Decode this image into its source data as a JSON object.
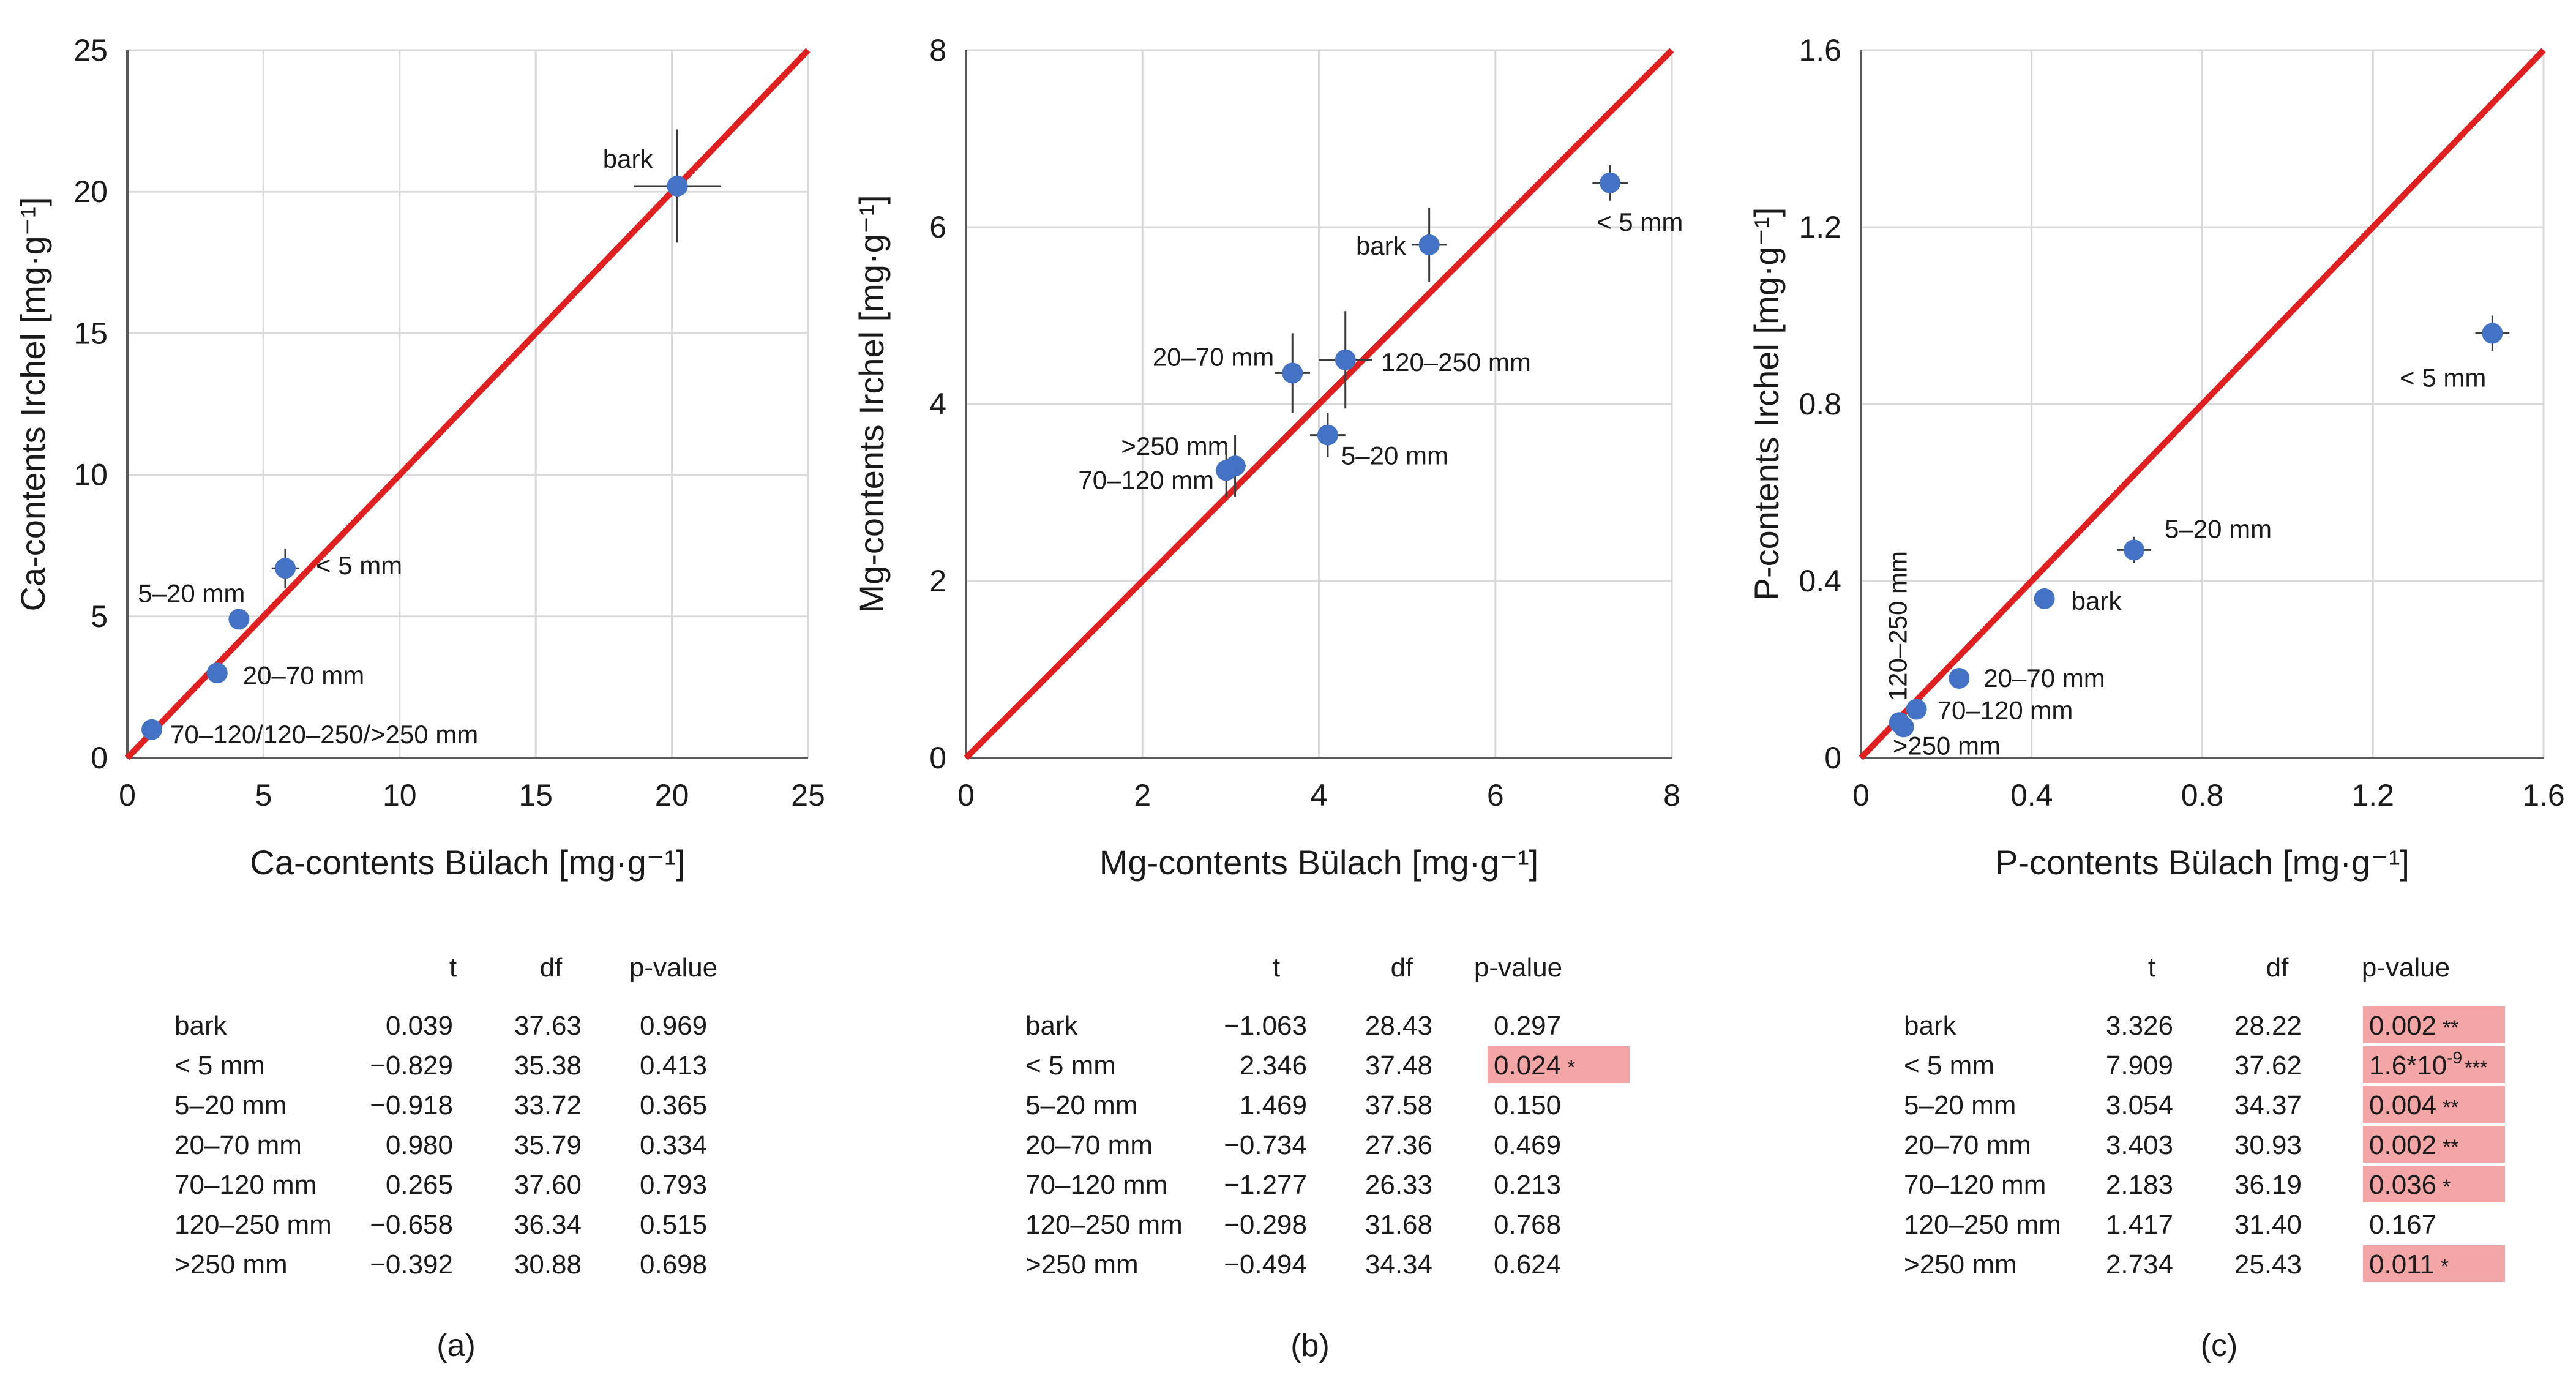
{
  "chart_data": [
    {
      "type": "scatter",
      "panel": "(a)",
      "xlabel": "Ca-contents Bülach [mg·g⁻¹]",
      "ylabel": "Ca-contents Irchel [mg·g⁻¹]",
      "xlim": [
        0,
        25
      ],
      "ylim": [
        0,
        25
      ],
      "xticks": [
        0,
        5,
        10,
        15,
        20,
        25
      ],
      "yticks": [
        0,
        5,
        10,
        15,
        20,
        25
      ],
      "tick_labels_x": [
        "0",
        "5",
        "10",
        "15",
        "20",
        "25"
      ],
      "tick_labels_y": [
        "0",
        "5",
        "10",
        "15",
        "20",
        "25"
      ],
      "reference_line": "1:1",
      "points": [
        {
          "label": "bark",
          "x": 20.2,
          "y": 20.2,
          "xerr": 1.6,
          "yerr": 2.0
        },
        {
          "label": "< 5 mm",
          "x": 5.8,
          "y": 6.7,
          "xerr": 0.5,
          "yerr": 0.7
        },
        {
          "label": "5–20 mm",
          "x": 4.1,
          "y": 4.9,
          "xerr": 0.2,
          "yerr": 0.3
        },
        {
          "label": "20–70 mm",
          "x": 3.3,
          "y": 3.0,
          "xerr": 0.15,
          "yerr": 0.2
        },
        {
          "label": "70–120/120–250/>250 mm",
          "x": 0.9,
          "y": 1.0,
          "xerr": 0.2,
          "yerr": 0.2
        }
      ],
      "table": {
        "headers": [
          "t",
          "df",
          "p-value"
        ],
        "rows": [
          {
            "name": "bark",
            "t": "0.039",
            "df": "37.63",
            "p": "0.969",
            "sig": ""
          },
          {
            "name": "< 5 mm",
            "t": "−0.829",
            "df": "35.38",
            "p": "0.413",
            "sig": ""
          },
          {
            "name": "5–20 mm",
            "t": "−0.918",
            "df": "33.72",
            "p": "0.365",
            "sig": ""
          },
          {
            "name": "20–70 mm",
            "t": "0.980",
            "df": "35.79",
            "p": "0.334",
            "sig": ""
          },
          {
            "name": "70–120 mm",
            "t": "0.265",
            "df": "37.60",
            "p": "0.793",
            "sig": ""
          },
          {
            "name": "120–250 mm",
            "t": "−0.658",
            "df": "36.34",
            "p": "0.515",
            "sig": ""
          },
          {
            "name": ">250 mm",
            "t": "−0.392",
            "df": "30.88",
            "p": "0.698",
            "sig": ""
          }
        ]
      }
    },
    {
      "type": "scatter",
      "panel": "(b)",
      "xlabel": "Mg-contents Bülach [mg·g⁻¹]",
      "ylabel": "Mg-contents Irchel [mg·g⁻¹]",
      "xlim": [
        0,
        8
      ],
      "ylim": [
        0,
        8
      ],
      "xticks": [
        0,
        2,
        4,
        6,
        8
      ],
      "yticks": [
        0,
        2,
        4,
        6,
        8
      ],
      "tick_labels_x": [
        "0",
        "2",
        "4",
        "6",
        "8"
      ],
      "tick_labels_y": [
        "0",
        "2",
        "4",
        "6",
        "8"
      ],
      "reference_line": "1:1",
      "points": [
        {
          "label": "< 5 mm",
          "x": 7.3,
          "y": 6.5,
          "xerr": 0.2,
          "yerr": 0.2
        },
        {
          "label": "bark",
          "x": 5.25,
          "y": 5.8,
          "xerr": 0.2,
          "yerr": 0.42
        },
        {
          "label": "20–70 mm",
          "x": 3.7,
          "y": 4.35,
          "xerr": 0.2,
          "yerr": 0.45
        },
        {
          "label": "120–250 mm",
          "x": 4.3,
          "y": 4.5,
          "xerr": 0.3,
          "yerr": 0.55
        },
        {
          "label": "5–20 mm",
          "x": 4.1,
          "y": 3.65,
          "xerr": 0.2,
          "yerr": 0.25
        },
        {
          "label": ">250 mm",
          "x": 3.05,
          "y": 3.3,
          "xerr": 0.12,
          "yerr": 0.35
        },
        {
          "label": "70–120 mm",
          "x": 2.95,
          "y": 3.25,
          "xerr": 0.12,
          "yerr": 0.3
        }
      ],
      "table": {
        "headers": [
          "t",
          "df",
          "p-value"
        ],
        "rows": [
          {
            "name": "bark",
            "t": "−1.063",
            "df": "28.43",
            "p": "0.297",
            "sig": ""
          },
          {
            "name": "< 5 mm",
            "t": "2.346",
            "df": "37.48",
            "p": "0.024",
            "sig": "*"
          },
          {
            "name": "5–20 mm",
            "t": "1.469",
            "df": "37.58",
            "p": "0.150",
            "sig": ""
          },
          {
            "name": "20–70 mm",
            "t": "−0.734",
            "df": "27.36",
            "p": "0.469",
            "sig": ""
          },
          {
            "name": "70–120 mm",
            "t": "−1.277",
            "df": "26.33",
            "p": "0.213",
            "sig": ""
          },
          {
            "name": "120–250 mm",
            "t": "−0.298",
            "df": "31.68",
            "p": "0.768",
            "sig": ""
          },
          {
            "name": ">250 mm",
            "t": "−0.494",
            "df": "34.34",
            "p": "0.624",
            "sig": ""
          }
        ]
      }
    },
    {
      "type": "scatter",
      "panel": "(c)",
      "xlabel": "P-contents Bülach [mg·g⁻¹]",
      "ylabel": "P-contents Irchel [mg·g⁻¹]",
      "xlim": [
        0,
        1.6
      ],
      "ylim": [
        0,
        1.6
      ],
      "xticks": [
        0,
        0.4,
        0.8,
        1.2,
        1.6
      ],
      "yticks": [
        0,
        0.4,
        0.8,
        1.2,
        1.6
      ],
      "tick_labels_x": [
        "0",
        "0.4",
        "0.8",
        "1.2",
        "1.6"
      ],
      "tick_labels_y": [
        "0",
        "0.4",
        "0.8",
        "1.2",
        "1.6"
      ],
      "reference_line": "1:1",
      "points": [
        {
          "label": "< 5 mm",
          "x": 1.48,
          "y": 0.96,
          "xerr": 0.04,
          "yerr": 0.04
        },
        {
          "label": "5–20 mm",
          "x": 0.64,
          "y": 0.47,
          "xerr": 0.04,
          "yerr": 0.03
        },
        {
          "label": "bark",
          "x": 0.43,
          "y": 0.36,
          "xerr": 0.02,
          "yerr": 0.01
        },
        {
          "label": "20–70 mm",
          "x": 0.23,
          "y": 0.18,
          "xerr": 0.01,
          "yerr": 0.01
        },
        {
          "label": "70–120 mm",
          "x": 0.13,
          "y": 0.11,
          "xerr": 0.01,
          "yerr": 0.01
        },
        {
          "label": "120–250 mm",
          "x": 0.09,
          "y": 0.08,
          "xerr": 0.01,
          "yerr": 0.01
        },
        {
          "label": ">250 mm",
          "x": 0.1,
          "y": 0.07,
          "xerr": 0.01,
          "yerr": 0.01
        }
      ],
      "table": {
        "headers": [
          "t",
          "df",
          "p-value"
        ],
        "rows": [
          {
            "name": "bark",
            "t": "3.326",
            "df": "28.22",
            "p": "0.002",
            "sig": "**"
          },
          {
            "name": "< 5 mm",
            "t": "7.909",
            "df": "37.62",
            "p": "1.6*10",
            "p_exp": "-9",
            "sig": "***"
          },
          {
            "name": "5–20 mm",
            "t": "3.054",
            "df": "34.37",
            "p": "0.004",
            "sig": "**"
          },
          {
            "name": "20–70 mm",
            "t": "3.403",
            "df": "30.93",
            "p": "0.002",
            "sig": "**"
          },
          {
            "name": "70–120 mm",
            "t": "2.183",
            "df": "36.19",
            "p": "0.036",
            "sig": "*"
          },
          {
            "name": "120–250 mm",
            "t": "1.417",
            "df": "31.40",
            "p": "0.167",
            "sig": ""
          },
          {
            "name": ">250 mm",
            "t": "2.734",
            "df": "25.43",
            "p": "0.011",
            "sig": "*"
          }
        ]
      }
    }
  ],
  "colors": {
    "point": "#4472c4",
    "reference_line": "#e02020",
    "grid": "#d9d9d9",
    "axis": "#595959",
    "error_bar": "#3a3a3a",
    "significant_highlight": "#f4a6a6"
  }
}
